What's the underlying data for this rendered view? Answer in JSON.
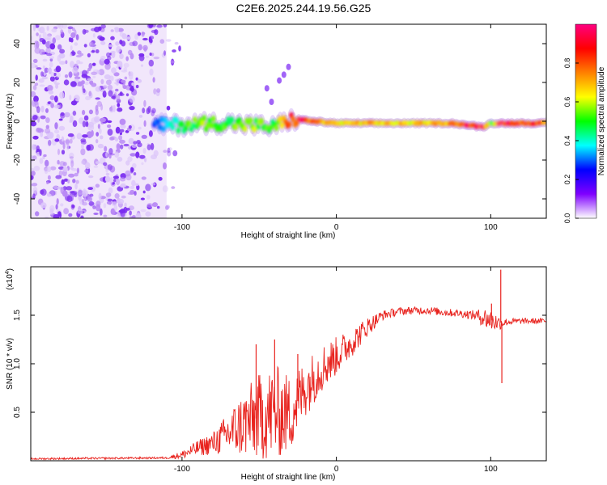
{
  "figure": {
    "title": "C2E6.2025.244.19.56.G25"
  },
  "chart_data": [
    {
      "type": "heatmap",
      "title": "C2E6.2025.244.19.56.G25",
      "xlabel": "Height of straight line (km)",
      "ylabel": "Frequency (Hz)",
      "xlim": [
        -198,
        136
      ],
      "ylim": [
        -50,
        50
      ],
      "xticks": [
        -100,
        0,
        100
      ],
      "yticks": [
        -40,
        -20,
        0,
        20,
        40
      ],
      "colorbar": {
        "label": "Normalized spectral amplitude",
        "range": [
          0,
          1
        ],
        "ticks": [
          "0.0",
          "0.2",
          "0.4",
          "0.6",
          "0.8"
        ],
        "tick_values": [
          0.0,
          0.2,
          0.4,
          0.6,
          0.8
        ],
        "colormap": [
          "#ffffff",
          "#7f00ff",
          "#0000ff",
          "#00ffff",
          "#00ff00",
          "#ffff00",
          "#ff8000",
          "#ff0000",
          "#ff0080"
        ]
      },
      "features": {
        "noise_region_x": [
          -198,
          -110
        ],
        "noise_fill_color": "#f1e6fb",
        "ridge": {
          "x": [
            -118,
            -100,
            -85,
            -70,
            -55,
            -40,
            -33,
            -25,
            -15,
            0,
            20,
            40,
            60,
            75,
            85,
            95,
            100,
            105,
            110,
            120,
            136
          ],
          "y": [
            -2,
            -2,
            -1,
            -1,
            -2,
            -3,
            0,
            1,
            0,
            -1,
            -1,
            -1,
            -1,
            -1,
            -2,
            -3,
            -1,
            -1,
            -1,
            -1,
            -1
          ],
          "amp": [
            0.3,
            0.5,
            0.6,
            0.55,
            0.6,
            0.5,
            0.8,
            0.95,
            0.85,
            0.7,
            0.75,
            0.7,
            0.75,
            0.8,
            0.95,
            0.95,
            0.5,
            0.95,
            0.95,
            0.9,
            0.85
          ]
        },
        "spikes": [
          {
            "x": -31,
            "y": 28
          },
          {
            "x": -34,
            "y": 24
          },
          {
            "x": -37,
            "y": 21
          },
          {
            "x": -45,
            "y": 17
          },
          {
            "x": -42,
            "y": 10
          }
        ]
      }
    },
    {
      "type": "line",
      "xlabel": "Height of straight line (km)",
      "ylabel": "SNR (10 * v/v)",
      "scale_note": "(x10",
      "scale_exp": "4",
      "xlim": [
        -198,
        136
      ],
      "ylim": [
        0,
        2.0
      ],
      "xticks": [
        -100,
        0,
        100
      ],
      "yticks": [
        0.5,
        1.0,
        1.5
      ],
      "ytick_labels": [
        "0.5",
        "1.0",
        "1.5"
      ],
      "color": "#e8231e",
      "envelope": {
        "x": [
          -198,
          -110,
          -100,
          -90,
          -80,
          -70,
          -60,
          -50,
          -40,
          -30,
          -20,
          -10,
          0,
          10,
          20,
          30,
          40,
          50,
          60,
          70,
          80,
          90,
          95,
          100,
          105,
          110,
          120,
          136
        ],
        "mean": [
          0.02,
          0.03,
          0.06,
          0.13,
          0.18,
          0.28,
          0.38,
          0.45,
          0.5,
          0.48,
          0.75,
          0.95,
          1.08,
          1.22,
          1.38,
          1.5,
          1.54,
          1.55,
          1.55,
          1.53,
          1.52,
          1.5,
          1.48,
          1.45,
          1.42,
          1.43,
          1.44,
          1.44
        ],
        "amp": [
          0.01,
          0.01,
          0.04,
          0.08,
          0.12,
          0.22,
          0.35,
          0.45,
          0.5,
          0.4,
          0.3,
          0.25,
          0.2,
          0.15,
          0.1,
          0.05,
          0.04,
          0.04,
          0.04,
          0.04,
          0.04,
          0.05,
          0.1,
          0.12,
          0.08,
          0.04,
          0.03,
          0.03
        ]
      },
      "spikes": [
        {
          "x": 106.5,
          "y": 1.97
        },
        {
          "x": 107.2,
          "y": 0.8
        },
        {
          "x": 100.5,
          "y": 1.62
        },
        {
          "x": -52,
          "y": 1.2
        },
        {
          "x": -40,
          "y": 1.25
        },
        {
          "x": -25,
          "y": 1.1
        }
      ]
    }
  ]
}
